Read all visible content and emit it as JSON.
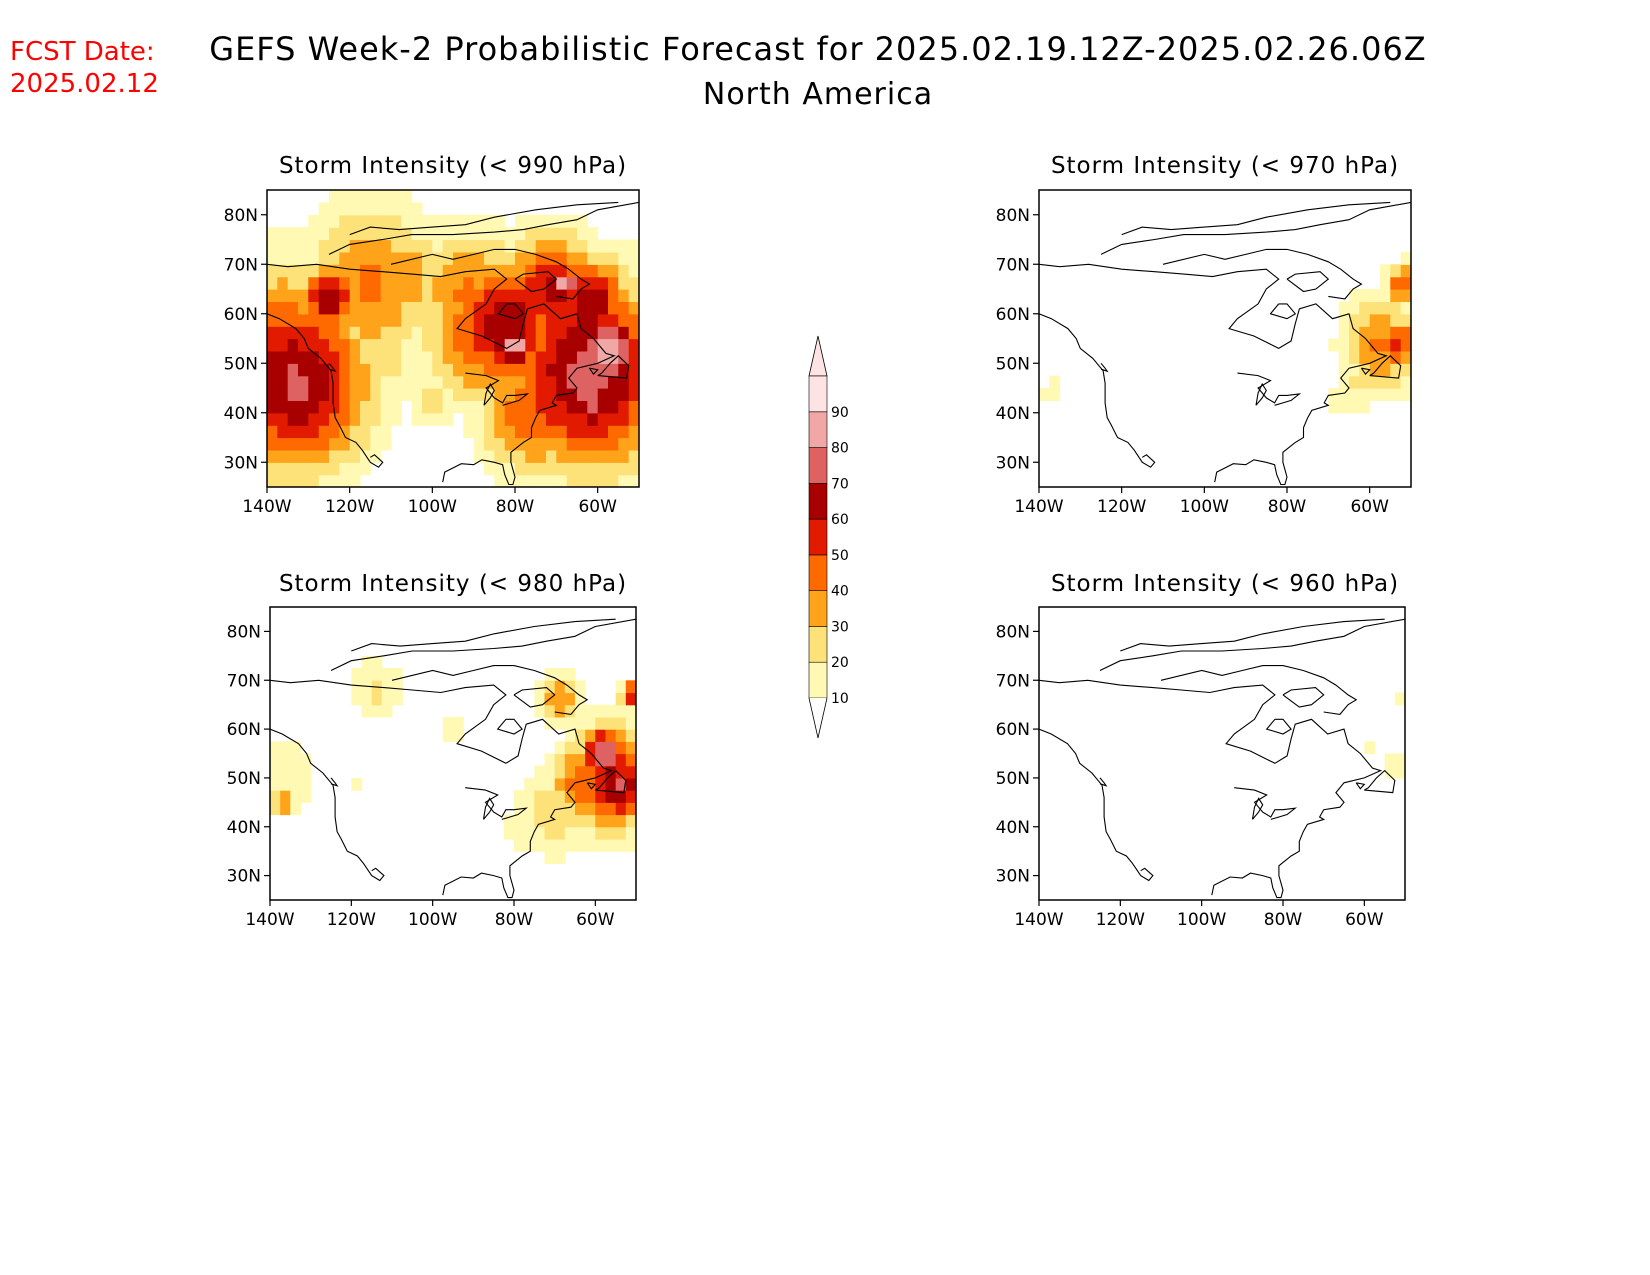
{
  "header": {
    "fcst_label": "FCST Date:",
    "fcst_date": "2025.02.12",
    "title": "GEFS Week-2 Probabilistic Forecast for 2025.02.19.12Z-2025.02.26.06Z",
    "subtitle": "North America"
  },
  "axes": {
    "lat_labels": [
      "80N",
      "70N",
      "60N",
      "50N",
      "40N",
      "30N"
    ],
    "lon_labels": [
      "140W",
      "120W",
      "100W",
      "80W",
      "60W"
    ]
  },
  "panels": [
    {
      "id": "p990",
      "title": "Storm Intensity (< 990 hPa)"
    },
    {
      "id": "p970",
      "title": "Storm Intensity (< 970 hPa)"
    },
    {
      "id": "p980",
      "title": "Storm Intensity (< 980 hPa)"
    },
    {
      "id": "p960",
      "title": "Storm Intensity (< 960 hPa)"
    }
  ],
  "colorbar": {
    "levels": [
      "10",
      "20",
      "30",
      "40",
      "50",
      "60",
      "70",
      "80",
      "90"
    ],
    "colors": [
      "#fff9b4",
      "#fde27a",
      "#ffa31a",
      "#ff6a00",
      "#e11a00",
      "#a80000",
      "#de6262",
      "#f2a7a7",
      "#fde3e3"
    ]
  },
  "chart_data": {
    "type": "heatmap",
    "lon_range": [
      -140,
      -50
    ],
    "lat_range": [
      25,
      85
    ],
    "cell_deg": 2.5,
    "value_units": "probability %",
    "panels": {
      "p990": [
        [
          -136,
          51,
          55,
          14
        ],
        [
          -133,
          46,
          72,
          13
        ],
        [
          -137,
          45,
          30,
          4
        ],
        [
          -126,
          56,
          40,
          9
        ],
        [
          -115,
          66,
          42,
          12
        ],
        [
          -107,
          67,
          38,
          8
        ],
        [
          -110,
          50,
          22,
          6
        ],
        [
          -91,
          64,
          42,
          10
        ],
        [
          -88,
          56,
          52,
          10
        ],
        [
          -82,
          58,
          68,
          10
        ],
        [
          -80,
          54,
          85,
          4
        ],
        [
          -71,
          64,
          62,
          9
        ],
        [
          -68,
          66,
          90,
          3
        ],
        [
          -62,
          62,
          70,
          7
        ],
        [
          -62,
          48,
          75,
          14
        ],
        [
          -58,
          52,
          88,
          7
        ],
        [
          -62,
          44,
          80,
          6
        ],
        [
          -69,
          44,
          60,
          10
        ],
        [
          -76,
          40,
          50,
          9
        ],
        [
          -78,
          36,
          35,
          6
        ],
        [
          -82,
          33,
          22,
          4
        ],
        [
          -82,
          47,
          22,
          6
        ],
        [
          -100,
          42,
          24,
          4
        ],
        [
          -125,
          63,
          70,
          5
        ],
        [
          -117,
          52,
          14,
          5
        ],
        [
          -95,
          49,
          20,
          5
        ],
        [
          -94,
          56,
          24,
          7
        ],
        [
          -77,
          60,
          30,
          10
        ]
      ],
      "p970": [
        [
          -57,
          54,
          42,
          7
        ],
        [
          -53,
          54,
          55,
          4
        ],
        [
          -52,
          66,
          48,
          3
        ],
        [
          -62,
          47,
          22,
          5
        ],
        [
          -66,
          43,
          14,
          5
        ],
        [
          -57,
          59,
          22,
          5
        ],
        [
          -137,
          44,
          14,
          3
        ]
      ],
      "p980": [
        [
          -56,
          50,
          62,
          8
        ],
        [
          -58,
          55,
          84,
          4
        ],
        [
          -54,
          48,
          74,
          5
        ],
        [
          -63,
          49,
          48,
          6
        ],
        [
          -70,
          43,
          26,
          7
        ],
        [
          -77,
          40,
          18,
          5
        ],
        [
          -138,
          50,
          16,
          8
        ],
        [
          -137,
          45,
          44,
          2
        ],
        [
          -114,
          68,
          22,
          5
        ],
        [
          -95,
          60,
          12,
          6
        ],
        [
          -69,
          66,
          40,
          4
        ],
        [
          -51,
          67,
          62,
          2
        ],
        [
          -118,
          48,
          12,
          3
        ]
      ],
      "p960": [
        [
          -52,
          52,
          14,
          4
        ],
        [
          -59,
          56,
          12,
          3
        ],
        [
          -51,
          66,
          12,
          2
        ]
      ]
    }
  }
}
